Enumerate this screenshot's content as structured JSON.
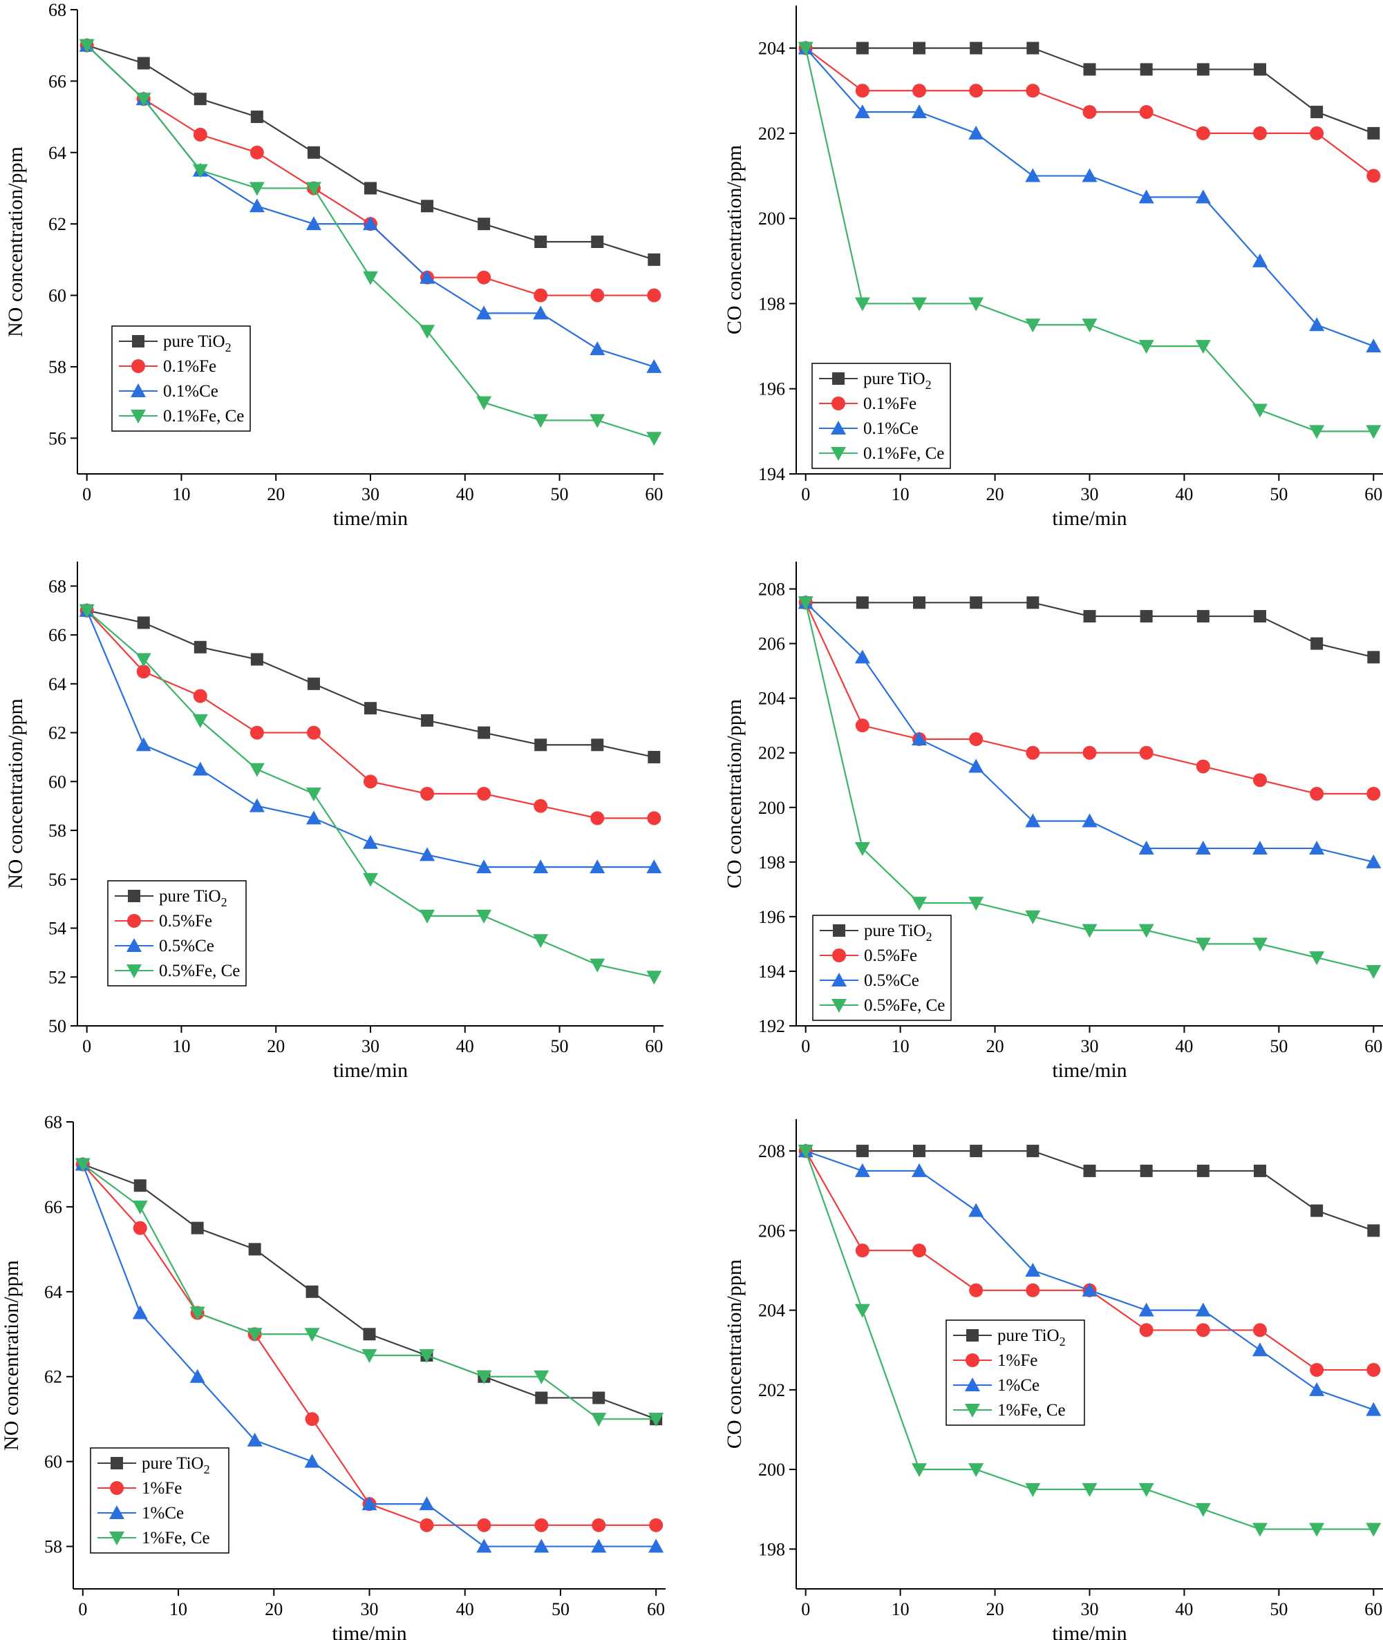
{
  "chart_data": [
    {
      "type": "line",
      "xlabel": "time/min",
      "ylabel": "NO concentration/ppm",
      "xlim": [
        -1,
        61
      ],
      "ylim": [
        55,
        68
      ],
      "xticks": [
        0,
        10,
        20,
        30,
        40,
        50,
        60
      ],
      "yticks": [
        56,
        58,
        60,
        62,
        64,
        66,
        68
      ],
      "legend_position": "lower-left",
      "x": [
        0,
        6,
        12,
        18,
        24,
        30,
        36,
        42,
        48,
        54,
        60
      ],
      "series": [
        {
          "name": "pure TiO2",
          "label_main": "pure TiO",
          "label_sub": "2",
          "marker": "square",
          "color": "#3f3f3f",
          "values": [
            67,
            66.5,
            65.5,
            65,
            64,
            63,
            62.5,
            62,
            61.5,
            61.5,
            61
          ]
        },
        {
          "name": "0.1%Fe",
          "label_main": "0.1%Fe",
          "label_sub": "",
          "marker": "circle",
          "color": "#f23a3a",
          "values": [
            67,
            65.5,
            64.5,
            64,
            63,
            62,
            60.5,
            60.5,
            60,
            60,
            60
          ]
        },
        {
          "name": "0.1%Ce",
          "label_main": "0.1%Ce",
          "label_sub": "",
          "marker": "triangle-up",
          "color": "#2a6fe0",
          "values": [
            67,
            65.5,
            63.5,
            62.5,
            62,
            62,
            60.5,
            59.5,
            59.5,
            58.5,
            58
          ]
        },
        {
          "name": "0.1%Fe, Ce",
          "label_main": "0.1%Fe, Ce",
          "label_sub": "",
          "marker": "triangle-down",
          "color": "#3ab566",
          "values": [
            67,
            65.5,
            63.5,
            63,
            63,
            60.5,
            59,
            57,
            56.5,
            56.5,
            56
          ]
        }
      ]
    },
    {
      "type": "line",
      "xlabel": "time/min",
      "ylabel": "CO concentration/ppm",
      "xlim": [
        -1,
        61
      ],
      "ylim": [
        194,
        205
      ],
      "xticks": [
        0,
        10,
        20,
        30,
        40,
        50,
        60
      ],
      "yticks": [
        194,
        196,
        198,
        200,
        202,
        204
      ],
      "legend_position": "lower-left",
      "x": [
        0,
        6,
        12,
        18,
        24,
        30,
        36,
        42,
        48,
        54,
        60
      ],
      "series": [
        {
          "name": "pure TiO2",
          "label_main": "pure TiO",
          "label_sub": "2",
          "marker": "square",
          "color": "#3f3f3f",
          "values": [
            204,
            204,
            204,
            204,
            204,
            203.5,
            203.5,
            203.5,
            203.5,
            202.5,
            202
          ]
        },
        {
          "name": "0.1%Fe",
          "label_main": "0.1%Fe",
          "label_sub": "",
          "marker": "circle",
          "color": "#f23a3a",
          "values": [
            204,
            203,
            203,
            203,
            203,
            202.5,
            202.5,
            202,
            202,
            202,
            201
          ]
        },
        {
          "name": "0.1%Ce",
          "label_main": "0.1%Ce",
          "label_sub": "",
          "marker": "triangle-up",
          "color": "#2a6fe0",
          "values": [
            204,
            202.5,
            202.5,
            202,
            201,
            201,
            200.5,
            200.5,
            199,
            197.5,
            197
          ]
        },
        {
          "name": "0.1%Fe, Ce",
          "label_main": "0.1%Fe, Ce",
          "label_sub": "",
          "marker": "triangle-down",
          "color": "#3ab566",
          "values": [
            204,
            198,
            198,
            198,
            197.5,
            197.5,
            197,
            197,
            195.5,
            195,
            195
          ]
        }
      ]
    },
    {
      "type": "line",
      "xlabel": "time/min",
      "ylabel": "NO concentration/ppm",
      "xlim": [
        -1,
        61
      ],
      "ylim": [
        50,
        69
      ],
      "xticks": [
        0,
        10,
        20,
        30,
        40,
        50,
        60
      ],
      "yticks": [
        50,
        52,
        54,
        56,
        58,
        60,
        62,
        64,
        66,
        68
      ],
      "legend_position": "lower-left",
      "x": [
        0,
        6,
        12,
        18,
        24,
        30,
        36,
        42,
        48,
        54,
        60
      ],
      "series": [
        {
          "name": "pure TiO2",
          "label_main": "pure TiO",
          "label_sub": "2",
          "marker": "square",
          "color": "#3f3f3f",
          "values": [
            67,
            66.5,
            65.5,
            65,
            64,
            63,
            62.5,
            62,
            61.5,
            61.5,
            61
          ]
        },
        {
          "name": "0.5%Fe",
          "label_main": "0.5%Fe",
          "label_sub": "",
          "marker": "circle",
          "color": "#f23a3a",
          "values": [
            67,
            64.5,
            63.5,
            62,
            62,
            60,
            59.5,
            59.5,
            59,
            58.5,
            58.5
          ]
        },
        {
          "name": "0.5%Ce",
          "label_main": "0.5%Ce",
          "label_sub": "",
          "marker": "triangle-up",
          "color": "#2a6fe0",
          "values": [
            67,
            61.5,
            60.5,
            59,
            58.5,
            57.5,
            57,
            56.5,
            56.5,
            56.5,
            56.5
          ]
        },
        {
          "name": "0.5%Fe, Ce",
          "label_main": "0.5%Fe, Ce",
          "label_sub": "",
          "marker": "triangle-down",
          "color": "#3ab566",
          "values": [
            67,
            65,
            62.5,
            60.5,
            59.5,
            56,
            54.5,
            54.5,
            53.5,
            52.5,
            52
          ]
        }
      ]
    },
    {
      "type": "line",
      "xlabel": "time/min",
      "ylabel": "CO concentration/ppm",
      "xlim": [
        -1,
        61
      ],
      "ylim": [
        192,
        209
      ],
      "xticks": [
        0,
        10,
        20,
        30,
        40,
        50,
        60
      ],
      "yticks": [
        192,
        194,
        196,
        198,
        200,
        202,
        204,
        206,
        208
      ],
      "legend_position": "lower-left",
      "x": [
        0,
        6,
        12,
        18,
        24,
        30,
        36,
        42,
        48,
        54,
        60
      ],
      "series": [
        {
          "name": "pure TiO2",
          "label_main": "pure TiO",
          "label_sub": "2",
          "marker": "square",
          "color": "#3f3f3f",
          "values": [
            207.5,
            207.5,
            207.5,
            207.5,
            207.5,
            207,
            207,
            207,
            207,
            206,
            205.5
          ]
        },
        {
          "name": "0.5%Fe",
          "label_main": "0.5%Fe",
          "label_sub": "",
          "marker": "circle",
          "color": "#f23a3a",
          "values": [
            207.5,
            203,
            202.5,
            202.5,
            202,
            202,
            202,
            201.5,
            201,
            200.5,
            200.5
          ]
        },
        {
          "name": "0.5%Ce",
          "label_main": "0.5%Ce",
          "label_sub": "",
          "marker": "triangle-up",
          "color": "#2a6fe0",
          "values": [
            207.5,
            205.5,
            202.5,
            201.5,
            199.5,
            199.5,
            198.5,
            198.5,
            198.5,
            198.5,
            198
          ]
        },
        {
          "name": "0.5%Fe, Ce",
          "label_main": "0.5%Fe, Ce",
          "label_sub": "",
          "marker": "triangle-down",
          "color": "#3ab566",
          "values": [
            207.5,
            198.5,
            196.5,
            196.5,
            196,
            195.5,
            195.5,
            195,
            195,
            194.5,
            194
          ]
        }
      ]
    },
    {
      "type": "line",
      "xlabel": "time/min",
      "ylabel": "NO concentration/ppm",
      "xlim": [
        -1,
        61
      ],
      "ylim": [
        57,
        68
      ],
      "xticks": [
        0,
        10,
        20,
        30,
        40,
        50,
        60
      ],
      "yticks": [
        58,
        60,
        62,
        64,
        66,
        68
      ],
      "legend_position": "lower-left",
      "x": [
        0,
        6,
        12,
        18,
        24,
        30,
        36,
        42,
        48,
        54,
        60
      ],
      "series": [
        {
          "name": "pure TiO2",
          "label_main": "pure TiO",
          "label_sub": "2",
          "marker": "square",
          "color": "#3f3f3f",
          "values": [
            67,
            66.5,
            65.5,
            65,
            64,
            63,
            62.5,
            62,
            61.5,
            61.5,
            61
          ]
        },
        {
          "name": "1%Fe",
          "label_main": "1%Fe",
          "label_sub": "",
          "marker": "circle",
          "color": "#f23a3a",
          "values": [
            67,
            65.5,
            63.5,
            63,
            61,
            59,
            58.5,
            58.5,
            58.5,
            58.5,
            58.5
          ]
        },
        {
          "name": "1%Ce",
          "label_main": "1%Ce",
          "label_sub": "",
          "marker": "triangle-up",
          "color": "#2a6fe0",
          "values": [
            67,
            63.5,
            62,
            60.5,
            60,
            59,
            59,
            58,
            58,
            58,
            58
          ]
        },
        {
          "name": "1%Fe, Ce",
          "label_main": "1%Fe, Ce",
          "label_sub": "",
          "marker": "triangle-down",
          "color": "#3ab566",
          "values": [
            67,
            66,
            63.5,
            63,
            63,
            62.5,
            62.5,
            62,
            62,
            61,
            61
          ]
        }
      ]
    },
    {
      "type": "line",
      "xlabel": "time/min",
      "ylabel": "CO concentration/ppm",
      "xlim": [
        -1,
        61
      ],
      "ylim": [
        197,
        208.8
      ],
      "xticks": [
        0,
        10,
        20,
        30,
        40,
        50,
        60
      ],
      "yticks": [
        198,
        200,
        202,
        204,
        206,
        208
      ],
      "legend_position": "center",
      "x": [
        0,
        6,
        12,
        18,
        24,
        30,
        36,
        42,
        48,
        54,
        60
      ],
      "series": [
        {
          "name": "pure TiO2",
          "label_main": "pure TiO",
          "label_sub": "2",
          "marker": "square",
          "color": "#3f3f3f",
          "values": [
            208,
            208,
            208,
            208,
            208,
            207.5,
            207.5,
            207.5,
            207.5,
            206.5,
            206
          ]
        },
        {
          "name": "1%Fe",
          "label_main": "1%Fe",
          "label_sub": "",
          "marker": "circle",
          "color": "#f23a3a",
          "values": [
            208,
            205.5,
            205.5,
            204.5,
            204.5,
            204.5,
            203.5,
            203.5,
            203.5,
            202.5,
            202.5
          ]
        },
        {
          "name": "1%Ce",
          "label_main": "1%Ce",
          "label_sub": "",
          "marker": "triangle-up",
          "color": "#2a6fe0",
          "values": [
            208,
            207.5,
            207.5,
            206.5,
            205,
            204.5,
            204,
            204,
            203,
            202,
            201.5
          ]
        },
        {
          "name": "1%Fe, Ce",
          "label_main": "1%Fe, Ce",
          "label_sub": "",
          "marker": "triangle-down",
          "color": "#3ab566",
          "values": [
            208,
            204,
            200,
            200,
            199.5,
            199.5,
            199.5,
            199,
            198.5,
            198.5,
            198.5
          ]
        }
      ]
    }
  ]
}
